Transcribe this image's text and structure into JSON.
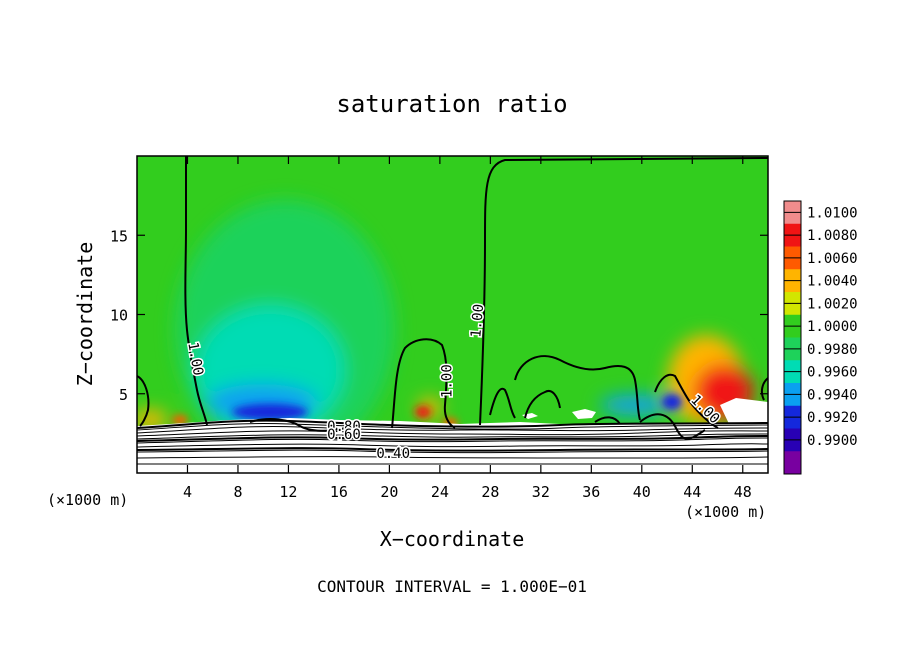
{
  "chart_data": {
    "type": "heatmap",
    "title": "saturation ratio",
    "xlabel": "X−coordinate",
    "ylabel": "Z−coordinate",
    "x_unit_left": "(×1000 m)",
    "x_unit_right": "(×1000 m)",
    "footer": "CONTOUR INTERVAL = 1.000E−01",
    "xlim": [
      0,
      50
    ],
    "ylim": [
      0,
      20
    ],
    "x_ticks": [
      4,
      8,
      12,
      16,
      20,
      24,
      28,
      32,
      36,
      40,
      44,
      48
    ],
    "y_ticks": [
      5,
      10,
      15
    ],
    "x_tick_labels": [
      "4",
      "8",
      "12",
      "16",
      "20",
      "24",
      "28",
      "32",
      "36",
      "40",
      "44",
      "48"
    ],
    "y_tick_labels": [
      "5",
      "10",
      "15"
    ],
    "colorbar": {
      "levels": [
        "1.0100",
        "1.0080",
        "1.0060",
        "1.0040",
        "1.0020",
        "1.0000",
        "0.9980",
        "0.9960",
        "0.9940",
        "0.9920",
        "0.9900"
      ],
      "colors": [
        "#f08c8c",
        "#f01414",
        "#ff5a00",
        "#ffb400",
        "#d2e600",
        "#32cd1e",
        "#1ed25a",
        "#00dcb4",
        "#0aa0f0",
        "#1428dc",
        "#2800b4",
        "#7800a0"
      ]
    },
    "contour_labels": [
      {
        "text": "1.00",
        "x": 4.6,
        "z": 7.2,
        "angle": 80
      },
      {
        "text": "1.00",
        "x": 24.6,
        "z": 5.8,
        "angle": -90
      },
      {
        "text": "1.00",
        "x": 27.0,
        "z": 9.6,
        "angle": -85
      },
      {
        "text": "1.00",
        "x": 45.0,
        "z": 4.0,
        "angle": 45
      },
      {
        "text": "0.80",
        "x": 16.4,
        "z": 2.9,
        "angle": 0
      },
      {
        "text": "0.60",
        "x": 16.4,
        "z": 2.4,
        "angle": 0
      },
      {
        "text": "0.40",
        "x": 20.3,
        "z": 1.2,
        "angle": 0
      }
    ],
    "contour_levels_shown": [
      0.4,
      0.6,
      0.8,
      1.0
    ]
  }
}
